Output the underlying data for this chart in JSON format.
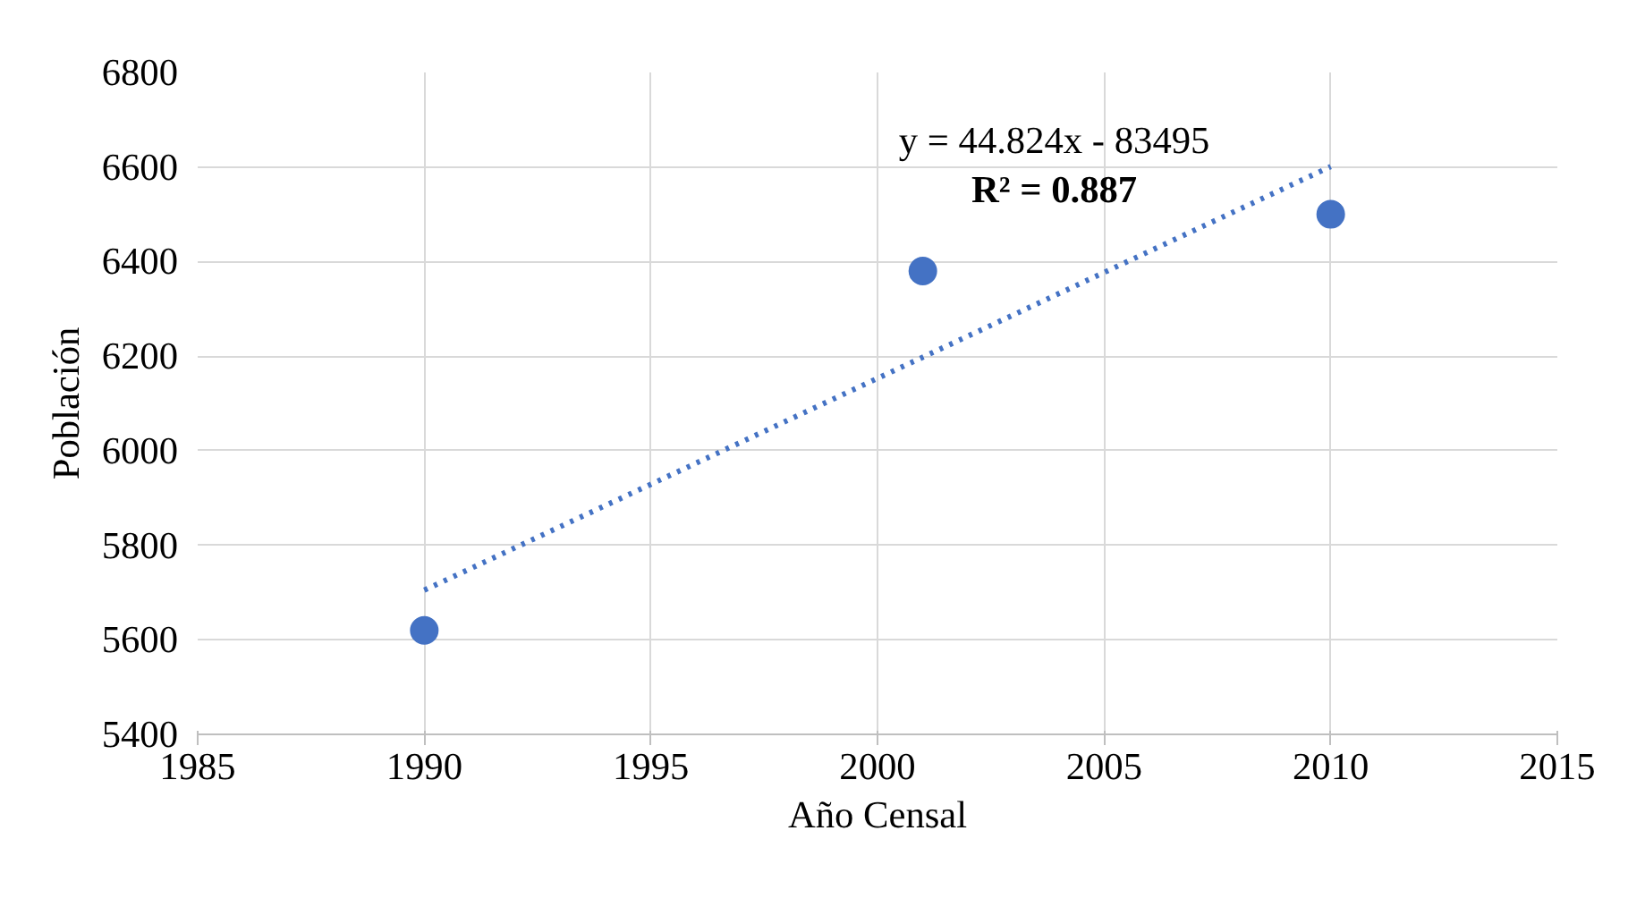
{
  "chart_data": {
    "type": "scatter",
    "xlabel": "Año Censal",
    "ylabel": "Población",
    "xlim": [
      1985,
      2015
    ],
    "xticks": [
      1985,
      1990,
      1995,
      2000,
      2005,
      2010,
      2015
    ],
    "ylim": [
      5400,
      6800
    ],
    "yticks": [
      5400,
      5600,
      5800,
      6000,
      6200,
      6400,
      6600,
      6800
    ],
    "grid": true,
    "marker": "circle",
    "series": [
      {
        "color": "#4472c4",
        "x": [
          1990,
          2001,
          2010
        ],
        "values": [
          5620,
          6380,
          6500
        ]
      },
      {
        "type": "line",
        "marker": "none",
        "color": "#4472c4",
        "line_style": "dotted",
        "x": [
          1990,
          2010
        ],
        "values": [
          5705,
          6601
        ]
      }
    ],
    "annotations": [
      "y = 44.824x - 83495",
      "R² = 0.887"
    ]
  }
}
